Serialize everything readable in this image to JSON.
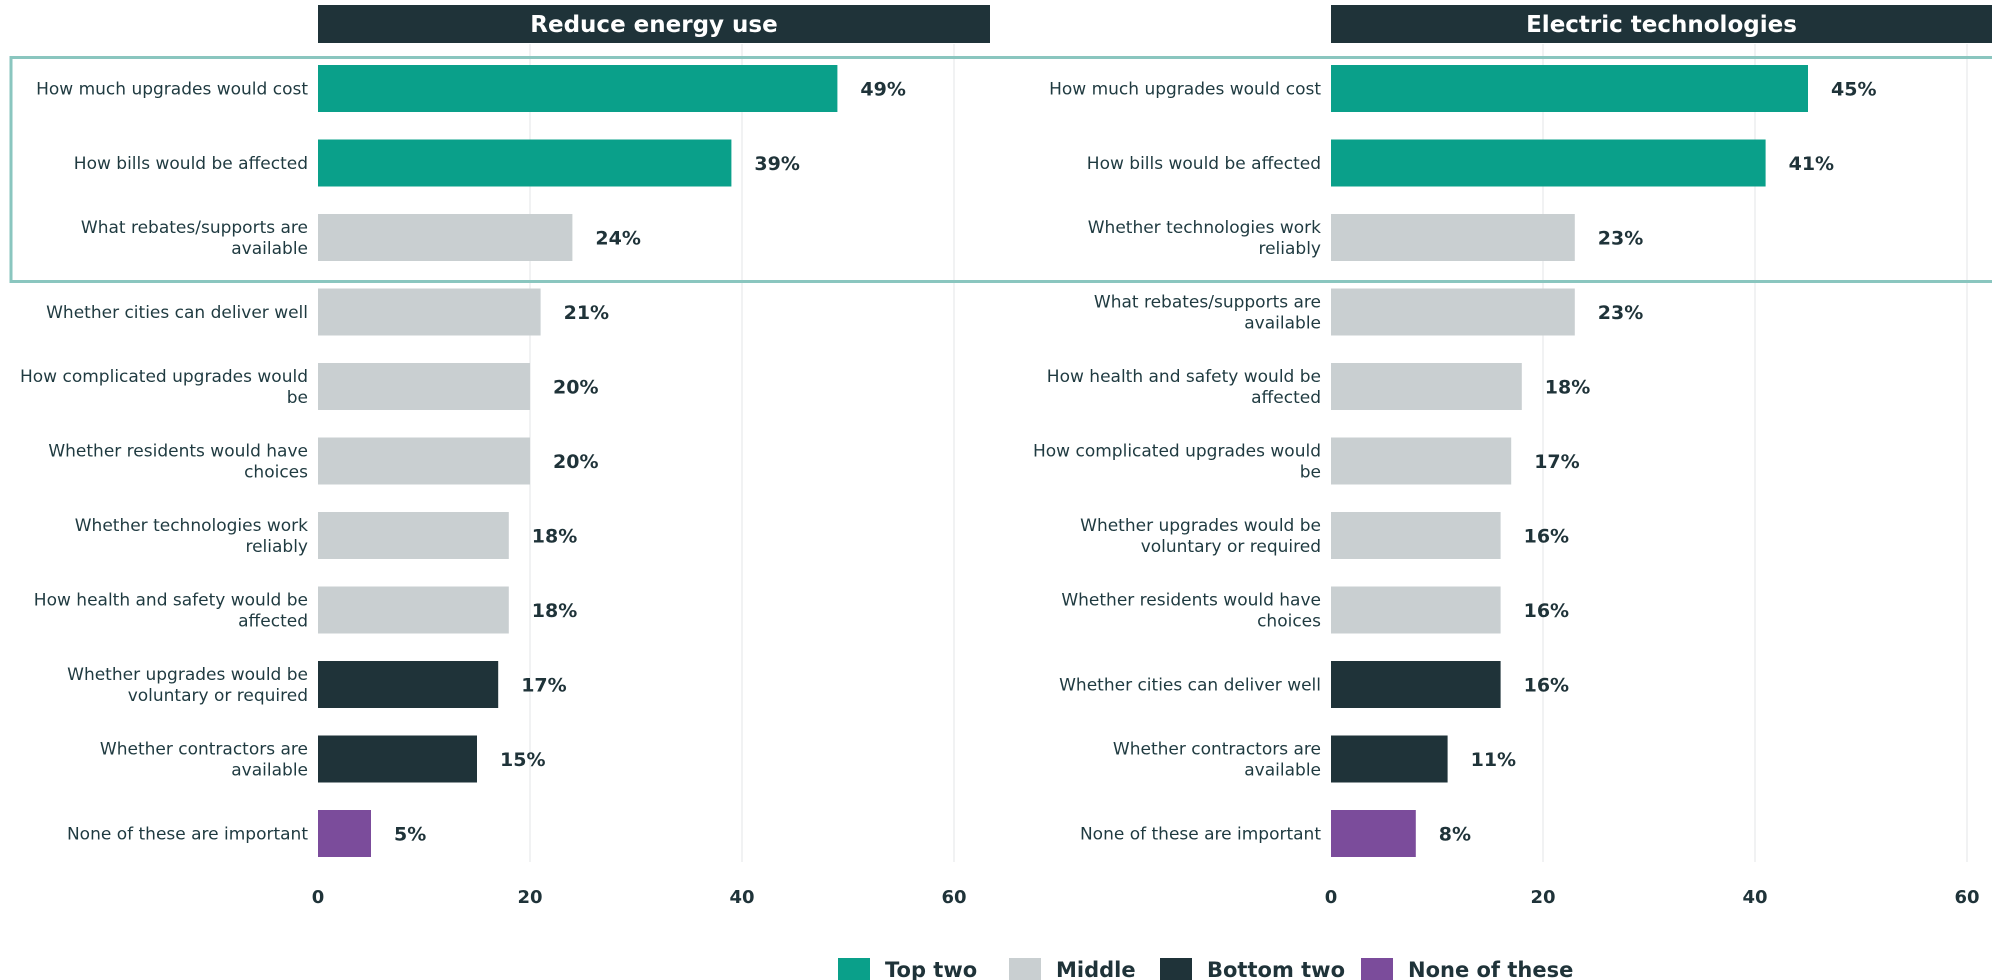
{
  "chart_data": [
    {
      "type": "bar",
      "orientation": "horizontal",
      "title": "Reduce energy use",
      "categories": [
        "How much upgrades would cost",
        "How bills would be affected",
        "What rebates/supports are available",
        "Whether cities can deliver well",
        "How complicated upgrades would be",
        "Whether residents would have choices",
        "Whether technologies work reliably",
        "How health and safety would be affected",
        "Whether upgrades would be voluntary or required",
        "Whether contractors are available",
        "None of these are important"
      ],
      "values": [
        49,
        39,
        24,
        21,
        20,
        20,
        18,
        18,
        17,
        15,
        5
      ],
      "value_labels": [
        "49%",
        "39%",
        "24%",
        "21%",
        "20%",
        "20%",
        "18%",
        "18%",
        "17%",
        "15%",
        "5%"
      ],
      "groups": [
        "Top two",
        "Top two",
        "Middle",
        "Middle",
        "Middle",
        "Middle",
        "Middle",
        "Middle",
        "Bottom two",
        "Bottom two",
        "None of these"
      ],
      "xlim": [
        0,
        63
      ],
      "xticks": [
        0,
        20,
        40,
        60
      ],
      "grid": true
    },
    {
      "type": "bar",
      "orientation": "horizontal",
      "title": "Electric technologies",
      "categories": [
        "How much upgrades would cost",
        "How bills would be affected",
        "Whether technologies work reliably",
        "What rebates/supports are available",
        "How health and safety would be affected",
        "How complicated upgrades would be",
        "Whether upgrades would be voluntary or required",
        "Whether residents would have choices",
        "Whether cities can deliver well",
        "Whether contractors are available",
        "None of these are important"
      ],
      "values": [
        45,
        41,
        23,
        23,
        18,
        17,
        16,
        16,
        16,
        11,
        8
      ],
      "value_labels": [
        "45%",
        "41%",
        "23%",
        "23%",
        "18%",
        "17%",
        "16%",
        "16%",
        "16%",
        "11%",
        "8%"
      ],
      "groups": [
        "Top two",
        "Top two",
        "Middle",
        "Middle",
        "Middle",
        "Middle",
        "Middle",
        "Middle",
        "Bottom two",
        "Bottom two",
        "None of these"
      ],
      "xlim": [
        0,
        63
      ],
      "xticks": [
        0,
        20,
        40,
        60
      ],
      "grid": true
    }
  ],
  "legend": {
    "placement": "bottom-center",
    "items": [
      {
        "label": "Top two",
        "color": "#0aa08a"
      },
      {
        "label": "Middle",
        "color": "#c9cfd1"
      },
      {
        "label": "Bottom two",
        "color": "#1f3339"
      },
      {
        "label": "None of these",
        "color": "#7b4c9b"
      }
    ]
  },
  "colors": {
    "title_bar": "#1f3339",
    "highlight_box": "#8ac6bf",
    "grid": "#e3e6e7",
    "top_two": "#0aa08a",
    "middle": "#c9cfd1",
    "bottom_two": "#1f3339",
    "none_of_these": "#7b4c9b"
  },
  "highlight": {
    "description_rows": 3
  }
}
